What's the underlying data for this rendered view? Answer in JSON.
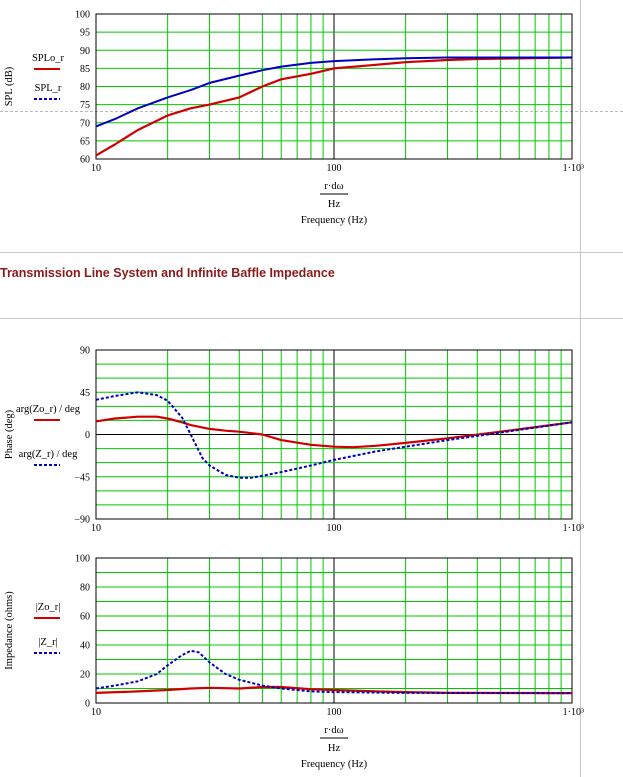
{
  "section": {
    "title": "Transmission Line System and Infinite Baffle Impedance"
  },
  "colors": {
    "grid": "#00c800",
    "axis": "#000000",
    "series_solid": "#d00000",
    "series_dashed": "#0000c0",
    "title": "#8b1a1a"
  },
  "icons": {
    "legend_solid": "red-solid-line-icon",
    "legend_dashed": "blue-dashed-line-icon"
  },
  "x_axis": {
    "expr_top": "r·dω",
    "expr_bottom": "Hz",
    "label": "Frequency (Hz)",
    "tick_labels": [
      "10",
      "100",
      "1·10³"
    ]
  },
  "chart_data": [
    {
      "type": "line",
      "scale": "log-x",
      "ylabel": "SPL (dB)",
      "legend": [
        "SPLo_r",
        "SPL_r"
      ],
      "ylim": [
        60,
        100
      ],
      "xlim": [
        10,
        1000
      ],
      "y_ticks": [
        "60",
        "65",
        "70",
        "75",
        "80",
        "85",
        "90",
        "95",
        "100"
      ],
      "series": [
        {
          "name": "SPLo_r",
          "style": "solid",
          "x": [
            10,
            12,
            15,
            20,
            25,
            30,
            40,
            50,
            60,
            80,
            100,
            150,
            200,
            300,
            400,
            1000
          ],
          "y": [
            61,
            64,
            68,
            72,
            74,
            75,
            77,
            80,
            82,
            83.5,
            85,
            86,
            86.7,
            87.3,
            87.6,
            88
          ]
        },
        {
          "name": "SPL_r",
          "style": "dashed",
          "x": [
            10,
            12,
            15,
            20,
            25,
            30,
            40,
            50,
            60,
            80,
            100,
            150,
            200,
            300,
            1000
          ],
          "y": [
            69,
            71,
            74,
            77,
            79,
            81,
            83,
            84.5,
            85.5,
            86.5,
            87,
            87.5,
            87.8,
            88,
            88
          ]
        }
      ]
    },
    {
      "type": "line",
      "scale": "log-x",
      "ylabel": "Phase (deg)",
      "legend": [
        "arg(Zo_r) / deg",
        "arg(Z_r) / deg"
      ],
      "ylim": [
        -90,
        90
      ],
      "xlim": [
        10,
        1000
      ],
      "y_ticks": [
        "-90",
        "-45",
        "0",
        "45",
        "90"
      ],
      "series": [
        {
          "name": "arg(Zo_r)/deg",
          "style": "solid",
          "x": [
            10,
            12,
            15,
            18,
            20,
            23,
            25,
            30,
            35,
            40,
            50,
            60,
            80,
            100,
            120,
            150,
            200,
            300,
            500,
            1000
          ],
          "y": [
            14,
            17,
            19,
            19,
            17,
            13,
            10,
            6,
            4,
            3,
            0,
            -6,
            -11,
            -13,
            -13.5,
            -12,
            -9,
            -4,
            3,
            13
          ]
        },
        {
          "name": "arg(Z_r)/deg",
          "style": "dashed",
          "x": [
            10,
            12,
            15,
            18,
            20,
            23,
            25,
            28,
            30,
            35,
            40,
            45,
            50,
            60,
            80,
            100,
            150,
            200,
            300,
            500,
            1000
          ],
          "y": [
            37,
            41,
            45,
            42,
            36,
            18,
            0,
            -25,
            -33,
            -43,
            -46,
            -46,
            -44,
            -40,
            -33,
            -27,
            -18,
            -13,
            -6,
            2,
            13
          ]
        }
      ]
    },
    {
      "type": "line",
      "scale": "log-x",
      "ylabel": "Impedance (ohms)",
      "legend": [
        "|Zo_r|",
        "|Z_r|"
      ],
      "ylim": [
        0,
        100
      ],
      "xlim": [
        10,
        1000
      ],
      "y_ticks": [
        "0",
        "20",
        "40",
        "60",
        "80",
        "100"
      ],
      "series": [
        {
          "name": "|Zo_r|",
          "style": "solid",
          "x": [
            10,
            15,
            20,
            25,
            30,
            40,
            50,
            60,
            80,
            100,
            150,
            200,
            300,
            1000
          ],
          "y": [
            7,
            8,
            9,
            10,
            10.5,
            10,
            11,
            11,
            9.5,
            9,
            8,
            7.5,
            7,
            6.8
          ]
        },
        {
          "name": "|Z_r|",
          "style": "dashed",
          "x": [
            10,
            12,
            15,
            18,
            20,
            23,
            25,
            27,
            30,
            35,
            40,
            50,
            60,
            80,
            100,
            200,
            1000
          ],
          "y": [
            10,
            12,
            15,
            20,
            26,
            33,
            36,
            35,
            28,
            20,
            16,
            12,
            10,
            8,
            7.5,
            7,
            6.8
          ]
        }
      ]
    }
  ]
}
